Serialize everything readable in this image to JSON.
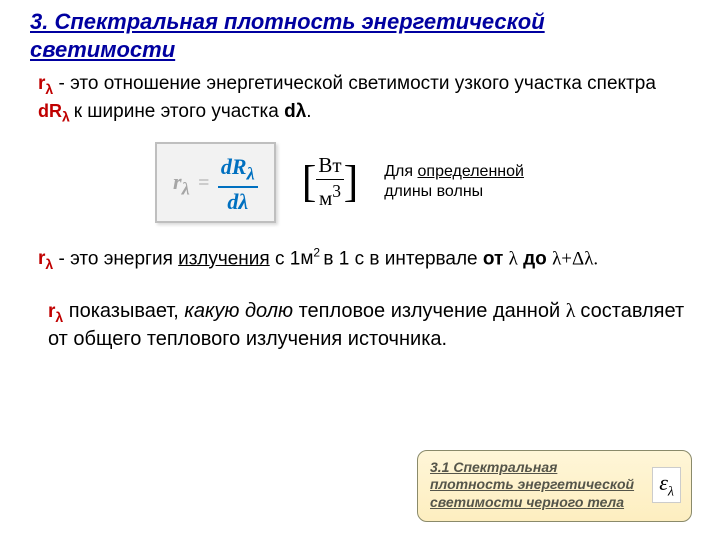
{
  "title": "3. Спектральная плотность энергетической светимости",
  "rlam_html": "r<sub>λ</sub>",
  "dRlam_html": "dR<sub>λ </sub>",
  "para1_part1": " - это отношение энергетической светимости узкого участка спектра ",
  "para1_part2": "к ширине этого участка ",
  "dlambda": "dλ",
  "period": ".",
  "formula": {
    "lhs_html": "r<sub>λ</sub>",
    "eq": "=",
    "num_html": "dR<sub>λ</sub>",
    "den": "dλ",
    "background_color": "#f2f2f2",
    "border_color": "#bfbfbf",
    "lhs_color": "#a6a6a6",
    "frac_color": "#0070c0"
  },
  "units": {
    "num": "Вт",
    "den_html": "м<sup>3</sup>"
  },
  "side_note_line1": "Для ",
  "side_note_underlined": "определенной",
  "side_note_line2": " длины волны",
  "para2_pre": " - это энергия ",
  "para2_ul": "излучения",
  "para2_mid1": " с 1",
  "para2_m2_html": "м<sup>2 </sup>",
  "para2_mid2": "в 1 с  в интервале ",
  "para2_bold1": "от ",
  "para2_greek1": "λ",
  "para2_bold2": " до ",
  "para2_greek2": "λ+Δλ.",
  "para3_mid1": " показывает, ",
  "para3_emph": "какую долю",
  "para3_mid2": " тепловое излучение данной ",
  "para3_greek": "λ ",
  "para3_mid3": "составляет от общего теплового излучения источника.",
  "callout": {
    "text_ul": "3.1 Спектральная плотность энергетической светимости ",
    "text_plain": " черного тела",
    "eps_html": "ε<sub>λ</sub>",
    "background": "linear-gradient(#fff6d8,#fdeec0)",
    "border_color": "#8a8a6a",
    "text_color": "#55554a"
  },
  "colors": {
    "title": "#0000a0",
    "accent": "#c00000"
  }
}
